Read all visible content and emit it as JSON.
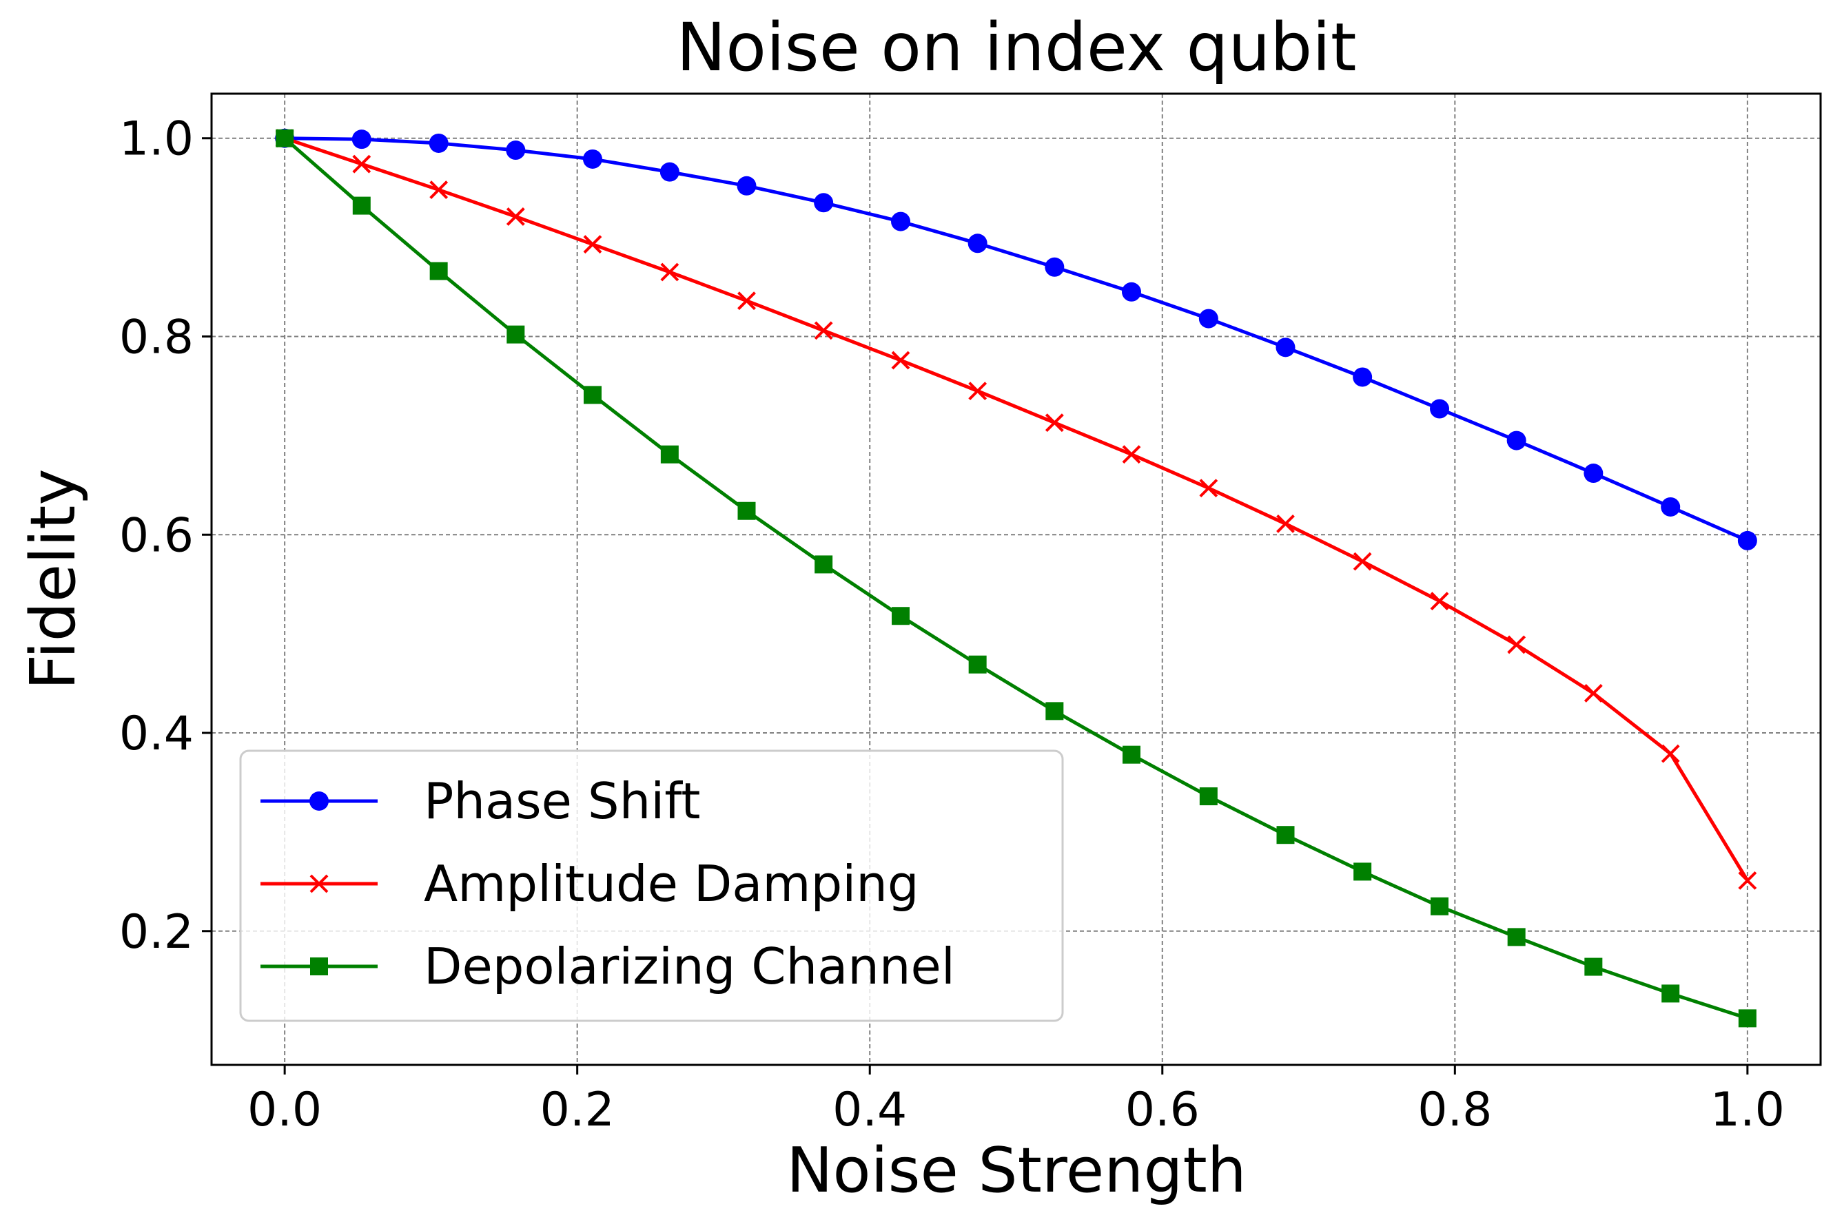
{
  "chart_data": {
    "type": "line",
    "title": "Noise on index qubit",
    "xlabel": "Noise Strength",
    "ylabel": "Fidelity",
    "xlim": [
      -0.05,
      1.05
    ],
    "ylim": [
      0.065,
      1.045
    ],
    "xticks": [
      0.0,
      0.2,
      0.4,
      0.6,
      0.8,
      1.0
    ],
    "xtick_labels": [
      "0.0",
      "0.2",
      "0.4",
      "0.6",
      "0.8",
      "1.0"
    ],
    "yticks": [
      0.2,
      0.4,
      0.6,
      0.8,
      1.0
    ],
    "ytick_labels": [
      "0.2",
      "0.4",
      "0.6",
      "0.8",
      "1.0"
    ],
    "grid": true,
    "legend_position": "lower-left",
    "x": [
      0.0,
      0.0526,
      0.1053,
      0.1579,
      0.2105,
      0.2632,
      0.3158,
      0.3684,
      0.4211,
      0.4737,
      0.5263,
      0.5789,
      0.6316,
      0.6842,
      0.7368,
      0.7895,
      0.8421,
      0.8947,
      0.9474,
      1.0
    ],
    "series": [
      {
        "name": "Phase Shift",
        "color": "#0000ff",
        "marker": "circle",
        "values": [
          1.0,
          0.999,
          0.995,
          0.988,
          0.979,
          0.966,
          0.952,
          0.935,
          0.916,
          0.894,
          0.87,
          0.845,
          0.818,
          0.789,
          0.759,
          0.727,
          0.695,
          0.662,
          0.628,
          0.594
        ]
      },
      {
        "name": "Amplitude Damping",
        "color": "#ff0000",
        "marker": "x",
        "values": [
          1.0,
          0.974,
          0.948,
          0.921,
          0.893,
          0.865,
          0.836,
          0.806,
          0.776,
          0.745,
          0.713,
          0.681,
          0.647,
          0.611,
          0.573,
          0.533,
          0.489,
          0.44,
          0.379,
          0.251
        ]
      },
      {
        "name": "Depolarizing Channel",
        "color": "#008000",
        "marker": "square",
        "values": [
          1.0,
          0.932,
          0.866,
          0.802,
          0.741,
          0.681,
          0.624,
          0.57,
          0.518,
          0.469,
          0.422,
          0.378,
          0.336,
          0.297,
          0.26,
          0.225,
          0.194,
          0.164,
          0.137,
          0.112
        ]
      }
    ]
  }
}
